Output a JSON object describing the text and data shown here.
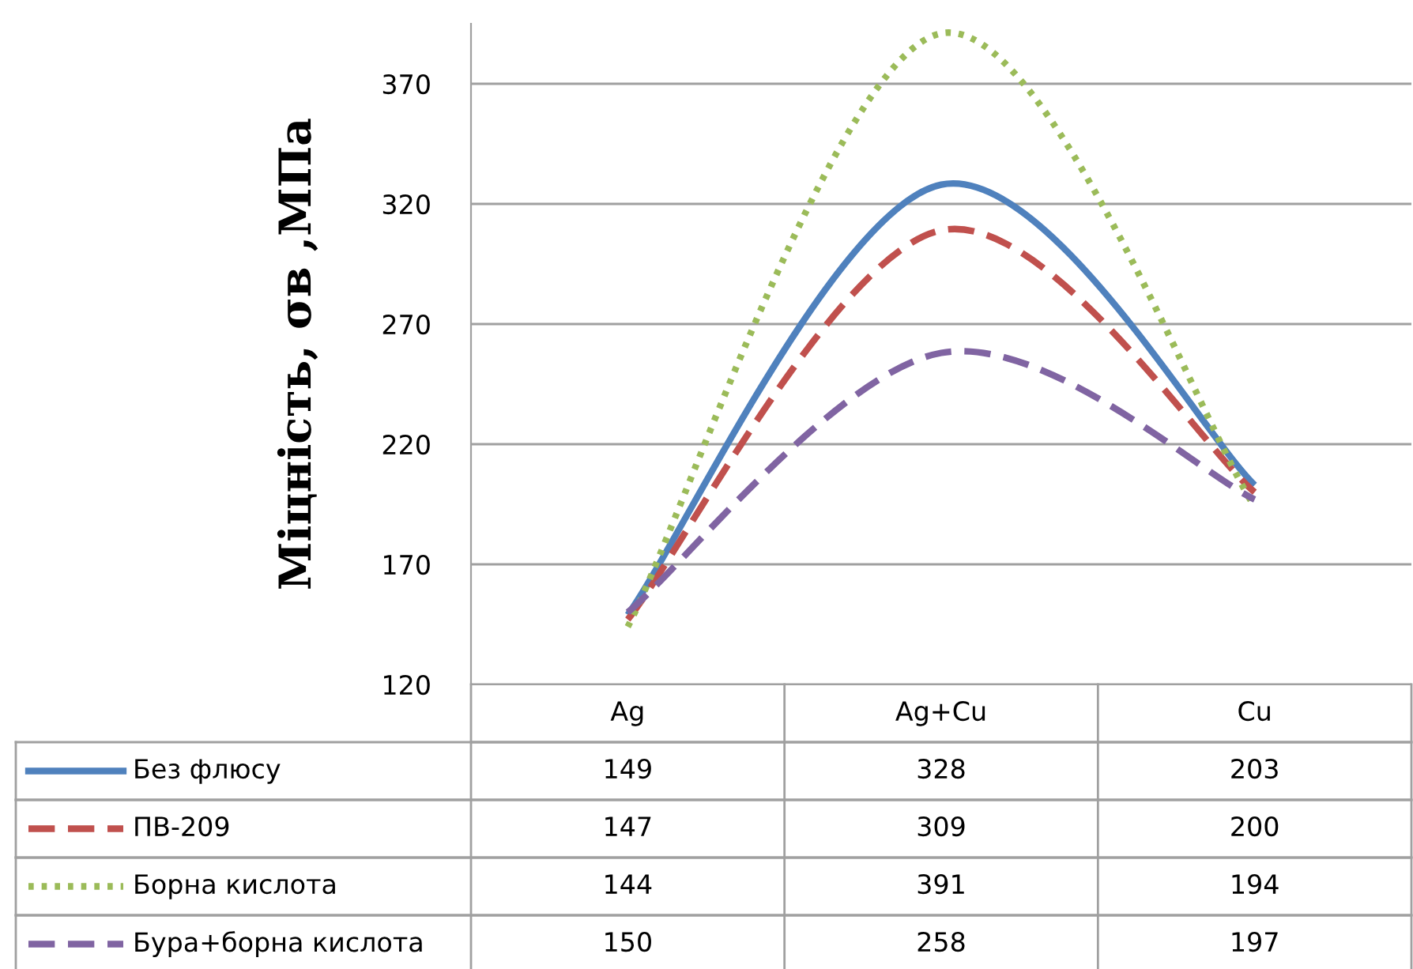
{
  "chart_data": {
    "type": "line",
    "ylabel": "Міцність, σв ,МПа",
    "categories": [
      "Ag",
      "Ag+Cu",
      "Cu"
    ],
    "series": [
      {
        "name": "Без флюсу",
        "color": "#4f81bd",
        "line_style": "solid",
        "values": [
          149,
          328,
          203
        ]
      },
      {
        "name": "ПВ-209",
        "color": "#c0504d",
        "line_style": "dashed",
        "values": [
          147,
          309,
          200
        ]
      },
      {
        "name": "Борна кислота",
        "color": "#9bbb59",
        "line_style": "dotted",
        "values": [
          144,
          391,
          194
        ]
      },
      {
        "name": "Бура+борна кислота",
        "color": "#8064a2",
        "line_style": "dashed",
        "values": [
          150,
          258,
          197
        ]
      }
    ],
    "ylim": [
      120,
      395
    ],
    "yticks": [
      120,
      170,
      220,
      270,
      320,
      370
    ],
    "grid": "y",
    "legend": "bottom",
    "data_labels": true
  }
}
